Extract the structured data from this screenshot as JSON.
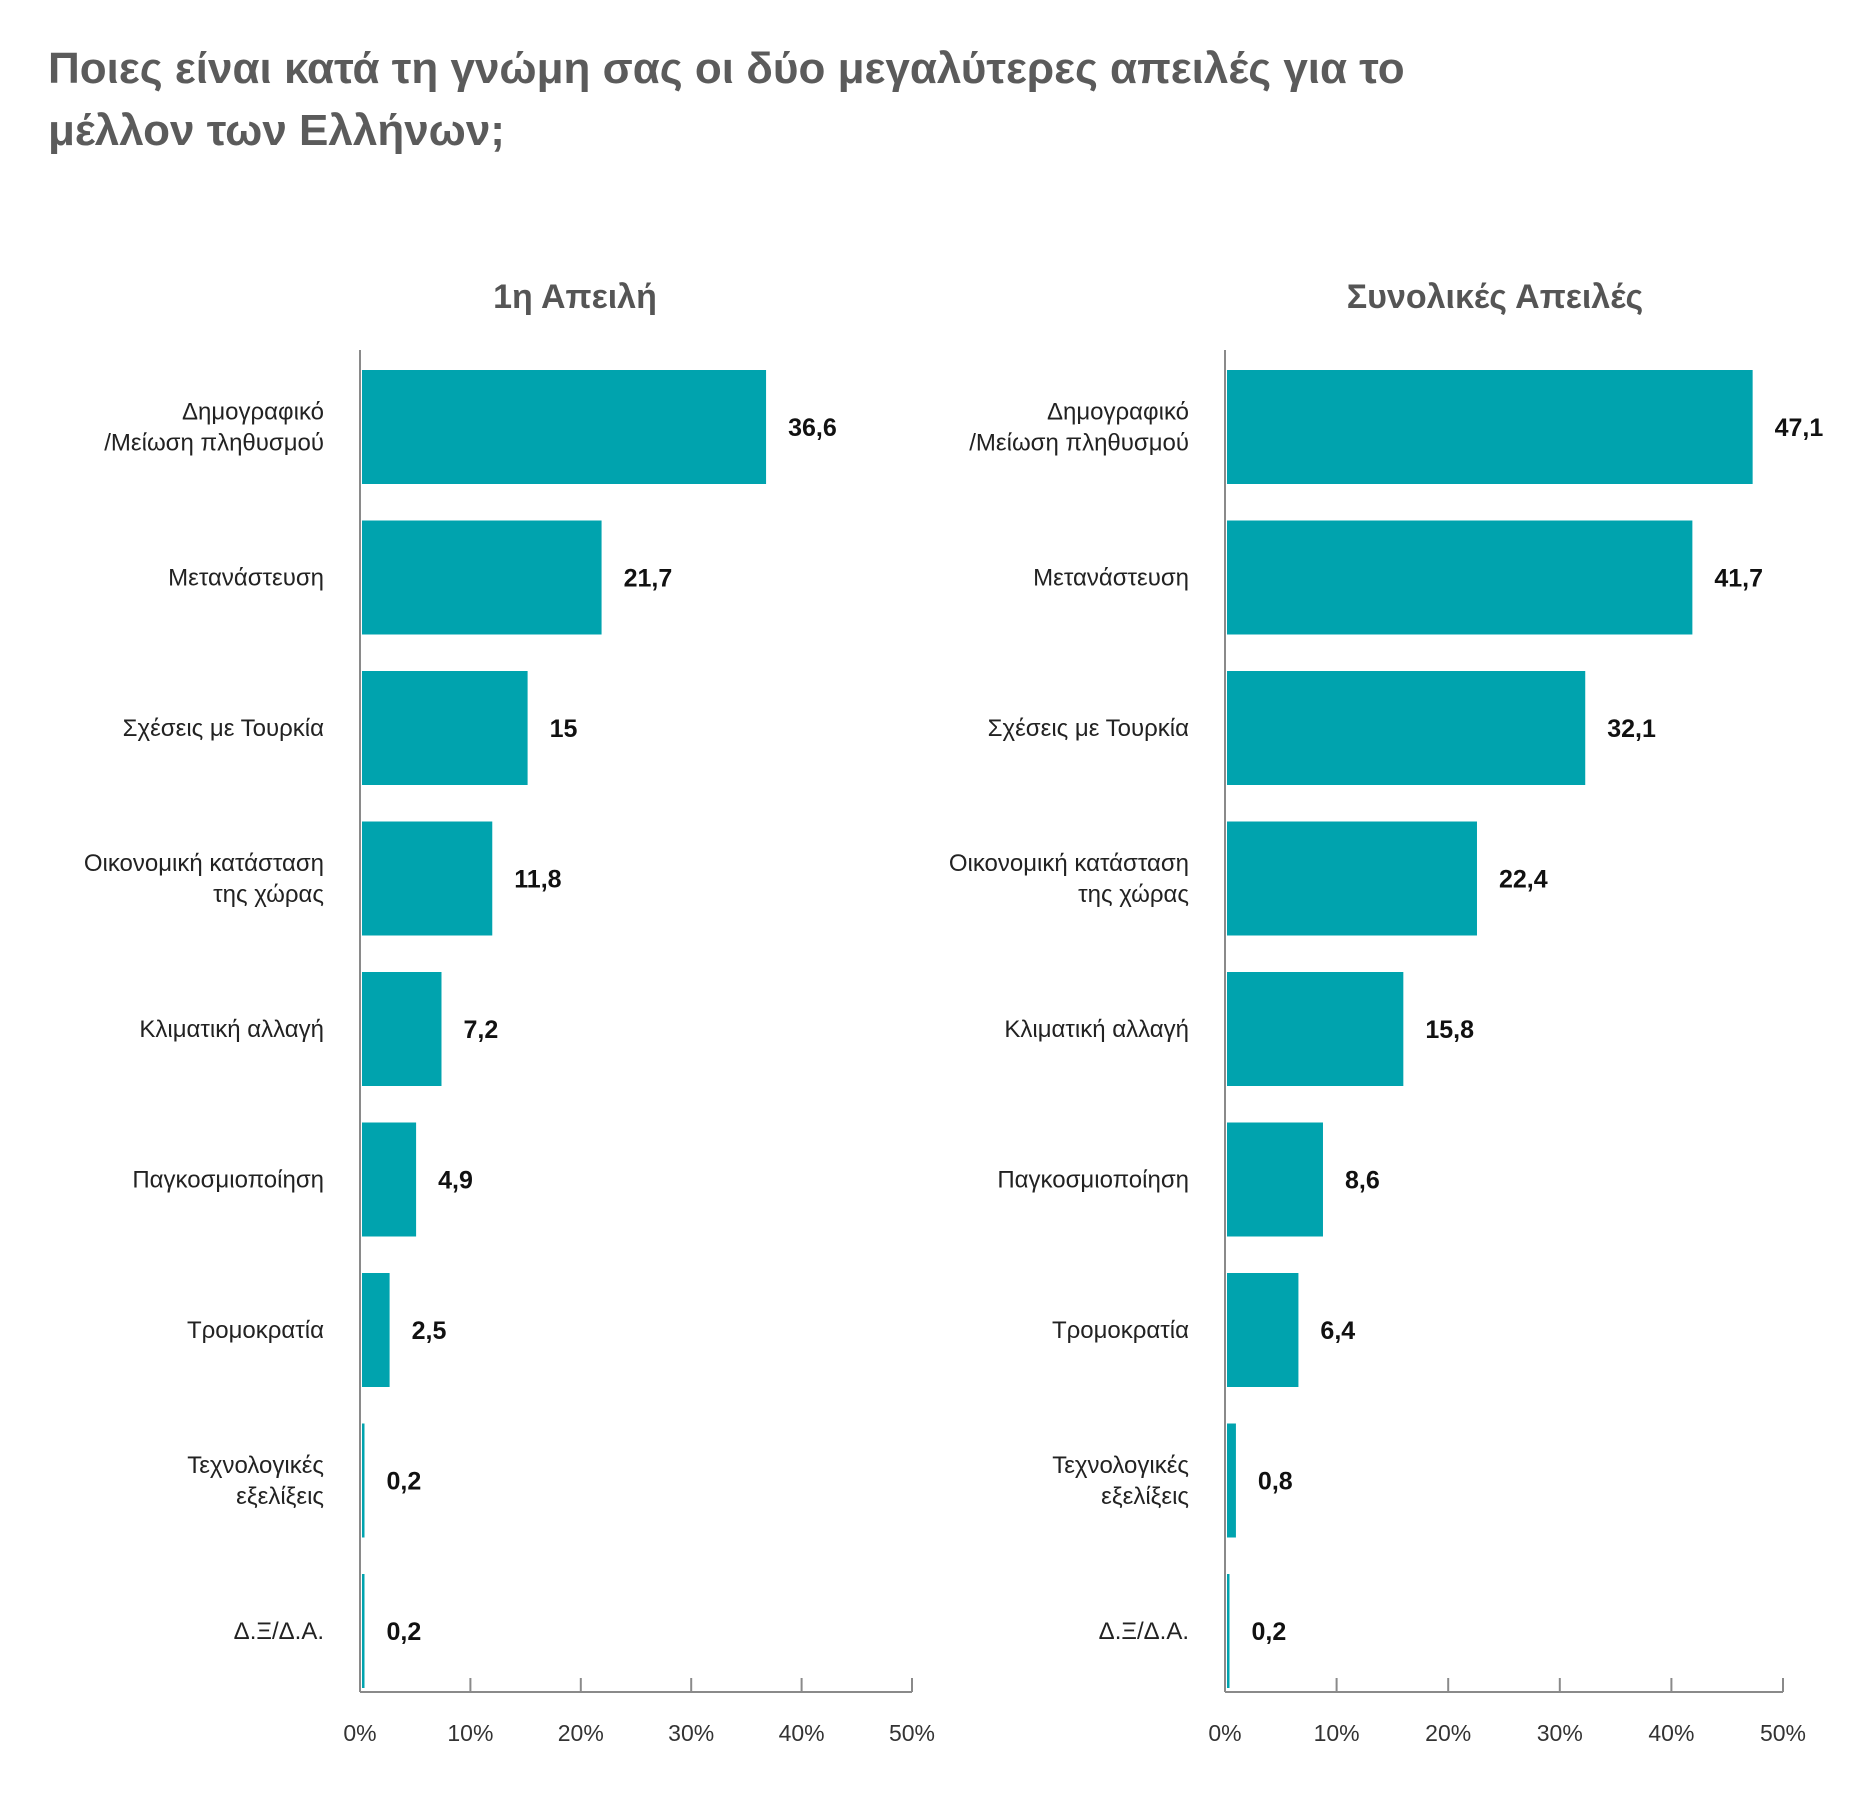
{
  "title_lines": [
    "Ποιες είναι κατά τη γνώμη σας οι δύο μεγαλύτερες απειλές για το",
    "μέλλον των Ελλήνων;"
  ],
  "colors": {
    "bar": "#00a3ae",
    "axis": "#8a8a8a",
    "title": "#5b5b5b"
  },
  "chart_data": [
    {
      "type": "bar",
      "orientation": "horizontal",
      "title": "1η Απειλή",
      "categories": [
        [
          "Δημογραφικό",
          "/Μείωση πληθυσμού"
        ],
        [
          "Μετανάστευση"
        ],
        [
          "Σχέσεις με Τουρκία"
        ],
        [
          "Οικονομική κατάσταση",
          "της χώρας"
        ],
        [
          "Κλιματική αλλαγή"
        ],
        [
          "Παγκοσμιοποίηση"
        ],
        [
          "Τρομοκρατία"
        ],
        [
          "Τεχνολογικές",
          "εξελίξεις"
        ],
        [
          "Δ.Ξ/Δ.Α."
        ]
      ],
      "values": [
        36.6,
        21.7,
        15,
        11.8,
        7.2,
        4.9,
        2.5,
        0.2,
        0.2
      ],
      "value_labels": [
        "36,6",
        "21,7",
        "15",
        "11,8",
        "7,2",
        "4,9",
        "2,5",
        "0,2",
        "0,2"
      ],
      "xlim": [
        0,
        50
      ],
      "xticks": [
        "0%",
        "10%",
        "20%",
        "30%",
        "40%",
        "50%"
      ],
      "grid": false
    },
    {
      "type": "bar",
      "orientation": "horizontal",
      "title": "Συνολικές Απειλές",
      "categories": [
        [
          "Δημογραφικό",
          "/Μείωση πληθυσμού"
        ],
        [
          "Μετανάστευση"
        ],
        [
          "Σχέσεις με Τουρκία"
        ],
        [
          "Οικονομική κατάσταση",
          "της χώρας"
        ],
        [
          "Κλιματική αλλαγή"
        ],
        [
          "Παγκοσμιοποίηση"
        ],
        [
          "Τρομοκρατία"
        ],
        [
          "Τεχνολογικές",
          "εξελίξεις"
        ],
        [
          "Δ.Ξ/Δ.Α."
        ]
      ],
      "values": [
        47.1,
        41.7,
        32.1,
        22.4,
        15.8,
        8.6,
        6.4,
        0.8,
        0.2
      ],
      "value_labels": [
        "47,1",
        "41,7",
        "32,1",
        "22,4",
        "15,8",
        "8,6",
        "6,4",
        "0,8",
        "0,2"
      ],
      "xlim": [
        0,
        50
      ],
      "xticks": [
        "0%",
        "10%",
        "20%",
        "30%",
        "40%",
        "50%"
      ],
      "grid": false
    }
  ]
}
